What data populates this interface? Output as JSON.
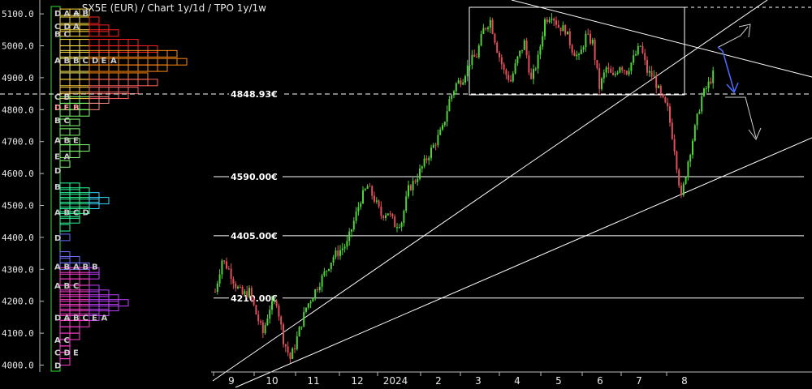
{
  "chart_data": {
    "type": "candlestick",
    "title": "_ SX5E (EUR) /  Chart 1y/1d / TPO 1y/1w",
    "y_ticks": [
      4000,
      4100,
      4200,
      4300,
      4400,
      4500,
      4600,
      4700,
      4800,
      4900,
      5000,
      5100
    ],
    "y_tick_labels": [
      "4000.0",
      "4100.0",
      "4200.0",
      "4300.0",
      "4400.0",
      "4500.0",
      "4600.0",
      "4700.0",
      "4800.0",
      "4900.0",
      "5000.0",
      "5100.0"
    ],
    "ylim": [
      3990,
      5115
    ],
    "x_tick_labels": [
      "9",
      "10",
      "11",
      "12",
      "2024",
      "2",
      "3",
      "4",
      "5",
      "6",
      "7",
      "8"
    ],
    "grid": false,
    "levels": [
      {
        "label": "4848.93€",
        "value": 4848.93,
        "style": "dashed"
      },
      {
        "label": "4590.00€",
        "value": 4590,
        "style": "solid"
      },
      {
        "label": "4405.00€",
        "value": 4405,
        "style": "solid"
      },
      {
        "label": "4210.00€",
        "value": 4210,
        "style": "solid"
      }
    ],
    "price_path": [
      [
        0,
        4230
      ],
      [
        3,
        4330
      ],
      [
        6,
        4300
      ],
      [
        9,
        4250
      ],
      [
        12,
        4220
      ],
      [
        15,
        4230
      ],
      [
        18,
        4160
      ],
      [
        21,
        4100
      ],
      [
        24,
        4180
      ],
      [
        27,
        4200
      ],
      [
        30,
        4080
      ],
      [
        33,
        4020
      ],
      [
        35,
        4060
      ],
      [
        37,
        4110
      ],
      [
        40,
        4180
      ],
      [
        43,
        4220
      ],
      [
        46,
        4260
      ],
      [
        49,
        4300
      ],
      [
        52,
        4340
      ],
      [
        55,
        4360
      ],
      [
        58,
        4380
      ],
      [
        61,
        4450
      ],
      [
        64,
        4520
      ],
      [
        67,
        4560
      ],
      [
        70,
        4520
      ],
      [
        73,
        4470
      ],
      [
        76,
        4480
      ],
      [
        79,
        4440
      ],
      [
        82,
        4450
      ],
      [
        85,
        4550
      ],
      [
        88,
        4580
      ],
      [
        91,
        4620
      ],
      [
        94,
        4660
      ],
      [
        97,
        4700
      ],
      [
        100,
        4740
      ],
      [
        103,
        4830
      ],
      [
        106,
        4880
      ],
      [
        109,
        4900
      ],
      [
        112,
        4950
      ],
      [
        115,
        4970
      ],
      [
        118,
        5050
      ],
      [
        121,
        5080
      ],
      [
        124,
        4990
      ],
      [
        127,
        4920
      ],
      [
        130,
        4890
      ],
      [
        133,
        4960
      ],
      [
        136,
        5010
      ],
      [
        139,
        4890
      ],
      [
        142,
        4960
      ],
      [
        145,
        5080
      ],
      [
        148,
        5100
      ],
      [
        151,
        5060
      ],
      [
        154,
        5050
      ],
      [
        157,
        4990
      ],
      [
        160,
        4960
      ],
      [
        163,
        5030
      ],
      [
        166,
        5010
      ],
      [
        169,
        4870
      ],
      [
        172,
        4930
      ],
      [
        175,
        4900
      ],
      [
        178,
        4940
      ],
      [
        181,
        4920
      ],
      [
        184,
        4960
      ],
      [
        187,
        5000
      ],
      [
        190,
        4920
      ],
      [
        193,
        4900
      ],
      [
        196,
        4840
      ],
      [
        199,
        4800
      ],
      [
        202,
        4680
      ],
      [
        205,
        4520
      ],
      [
        208,
        4640
      ],
      [
        211,
        4740
      ],
      [
        214,
        4840
      ],
      [
        217,
        4880
      ],
      [
        219,
        4910
      ]
    ],
    "tpo_profiles": [
      {
        "letters": [
          [
            "D",
            "A",
            "A",
            "B"
          ],
          [
            "C",
            "D",
            "A"
          ],
          [
            "B",
            "C"
          ],
          [
            "A",
            "B",
            "B",
            "C",
            "D",
            "E",
            "A"
          ],
          [
            "C",
            "B"
          ],
          [
            "D",
            "E",
            "B"
          ],
          [
            "B",
            "C"
          ],
          [
            "A",
            "B",
            "E"
          ],
          [
            "E",
            "A"
          ],
          [
            "D"
          ]
        ],
        "rows": [
          [
            5105,
            3
          ],
          [
            5080,
            4
          ],
          [
            5055,
            5
          ],
          [
            5040,
            6
          ],
          [
            5010,
            8
          ],
          [
            4990,
            10
          ],
          [
            4975,
            12
          ],
          [
            4950,
            13
          ],
          [
            4930,
            11
          ],
          [
            4905,
            9
          ],
          [
            4885,
            10
          ],
          [
            4860,
            8
          ],
          [
            4845,
            7
          ],
          [
            4830,
            5
          ],
          [
            4810,
            4
          ],
          [
            4790,
            3
          ],
          [
            4760,
            2
          ],
          [
            4730,
            2
          ],
          [
            4700,
            2
          ],
          [
            4680,
            3
          ],
          [
            4660,
            2
          ],
          [
            4630,
            1
          ]
        ]
      },
      {
        "rows": [
          [
            4560,
            2
          ],
          [
            4545,
            3
          ],
          [
            4530,
            4
          ],
          [
            4515,
            5
          ],
          [
            4500,
            4
          ],
          [
            4485,
            3
          ],
          [
            4470,
            2
          ],
          [
            4455,
            2
          ],
          [
            4430,
            1
          ],
          [
            4400,
            1
          ]
        ]
      },
      {
        "rows": [
          [
            4345,
            1
          ],
          [
            4330,
            2
          ],
          [
            4310,
            3
          ],
          [
            4295,
            4
          ],
          [
            4280,
            4
          ],
          [
            4260,
            3
          ],
          [
            4240,
            4
          ],
          [
            4225,
            5
          ],
          [
            4210,
            6
          ],
          [
            4195,
            7
          ],
          [
            4180,
            6
          ],
          [
            4165,
            5
          ],
          [
            4150,
            4
          ],
          [
            4130,
            3
          ],
          [
            4110,
            2
          ],
          [
            4090,
            2
          ],
          [
            4070,
            1
          ],
          [
            4050,
            1
          ],
          [
            4030,
            1
          ],
          [
            4010,
            1
          ]
        ]
      }
    ]
  }
}
